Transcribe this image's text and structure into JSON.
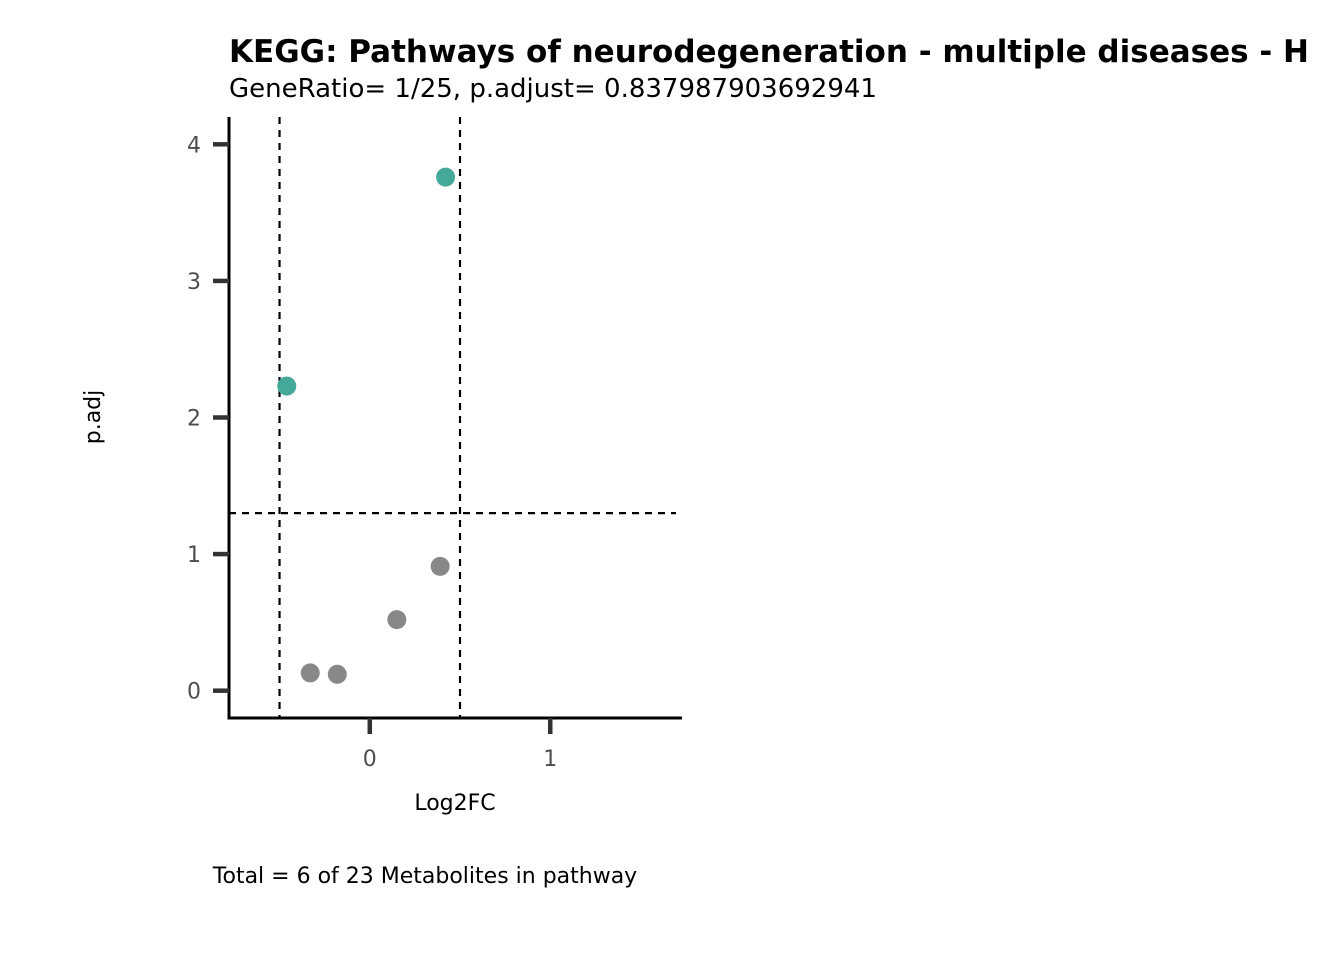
{
  "chart_data": {
    "type": "scatter",
    "title": "KEGG: Pathways of neurodegeneration - multiple diseases - H",
    "subtitle": "GeneRatio= 1/25, p.adjust= 0.837987903692941",
    "xlabel": "Log2FC",
    "ylabel": "p.adj",
    "caption": "Total = 6 of 23 Metabolites in pathway",
    "xlim": [
      -0.78,
      1.73
    ],
    "ylim": [
      -0.2,
      4.2
    ],
    "x_ticks": [
      0,
      1
    ],
    "x_tick_labels": [
      "0",
      "1"
    ],
    "y_ticks": [
      0,
      1,
      2,
      3,
      4
    ],
    "y_tick_labels": [
      "0",
      "1",
      "2",
      "3",
      "4"
    ],
    "vlines": [
      -0.5,
      0.5
    ],
    "hline": 1.3,
    "grid": false,
    "legend": "none",
    "colors": {
      "significant": "#45a99a",
      "not_significant": "#888888"
    },
    "points": [
      {
        "x": 0.42,
        "y": 3.76,
        "group": "significant"
      },
      {
        "x": -0.46,
        "y": 2.23,
        "group": "significant"
      },
      {
        "x": 0.39,
        "y": 0.91,
        "group": "not_significant"
      },
      {
        "x": 0.15,
        "y": 0.52,
        "group": "not_significant"
      },
      {
        "x": -0.33,
        "y": 0.13,
        "group": "not_significant"
      },
      {
        "x": -0.18,
        "y": 0.12,
        "group": "not_significant"
      }
    ]
  }
}
